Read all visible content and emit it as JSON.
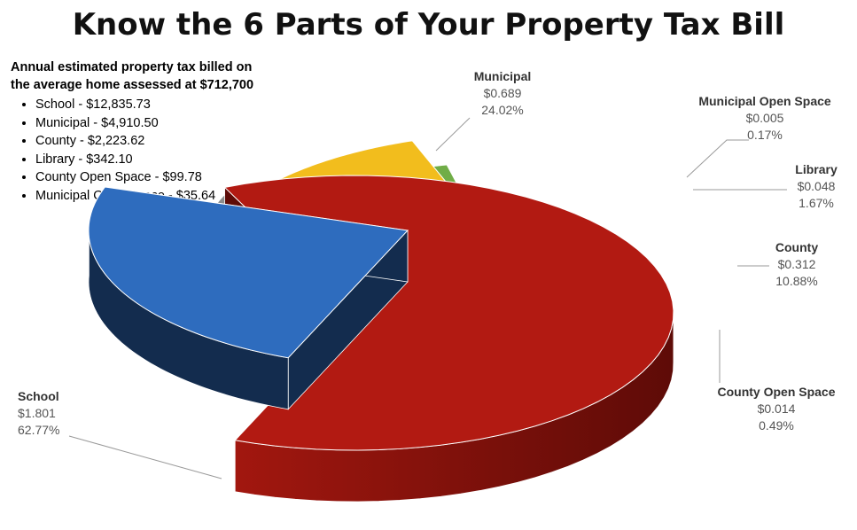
{
  "page": {
    "title": "Know the 6 Parts of Your Property Tax Bill"
  },
  "info": {
    "heading_line1": "Annual estimated property tax billed on",
    "heading_line2": "the average home assessed at $712,700",
    "items": [
      "School - $12,835.73",
      "Municipal - $4,910.50",
      "County - $2,223.62",
      "Library - $342.10",
      "County Open Space - $99.78",
      "Municipal Open Space - $35.64"
    ]
  },
  "chart_data": {
    "type": "pie",
    "style": "3d-exploded",
    "title": "Know the 6 Parts of Your Property Tax Bill",
    "slices": [
      {
        "name": "School",
        "value": 1.801,
        "value_label": "$1.801",
        "percent": 62.77,
        "percent_label": "62.77%",
        "color": "#b21a12",
        "side_color": "#5e0b07"
      },
      {
        "name": "Municipal",
        "value": 0.689,
        "value_label": "$0.689",
        "percent": 24.02,
        "percent_label": "24.02%",
        "color": "#2e6cbe",
        "side_color": "#132c4e"
      },
      {
        "name": "Municipal Open Space",
        "value": 0.005,
        "value_label": "$0.005",
        "percent": 0.17,
        "percent_label": "0.17%",
        "color": "#8c8c8c",
        "side_color": "#4a4a4a"
      },
      {
        "name": "Library",
        "value": 0.048,
        "value_label": "$0.048",
        "percent": 1.67,
        "percent_label": "1.67%",
        "color": "#44546a",
        "side_color": "#1f2733"
      },
      {
        "name": "County",
        "value": 0.312,
        "value_label": "$0.312",
        "percent": 10.88,
        "percent_label": "10.88%",
        "color": "#f2bd1d",
        "side_color": "#6a5206"
      },
      {
        "name": "County Open Space",
        "value": 0.014,
        "value_label": "$0.014",
        "percent": 0.49,
        "percent_label": "0.49%",
        "color": "#70ad47",
        "side_color": "#1f3013"
      }
    ]
  }
}
